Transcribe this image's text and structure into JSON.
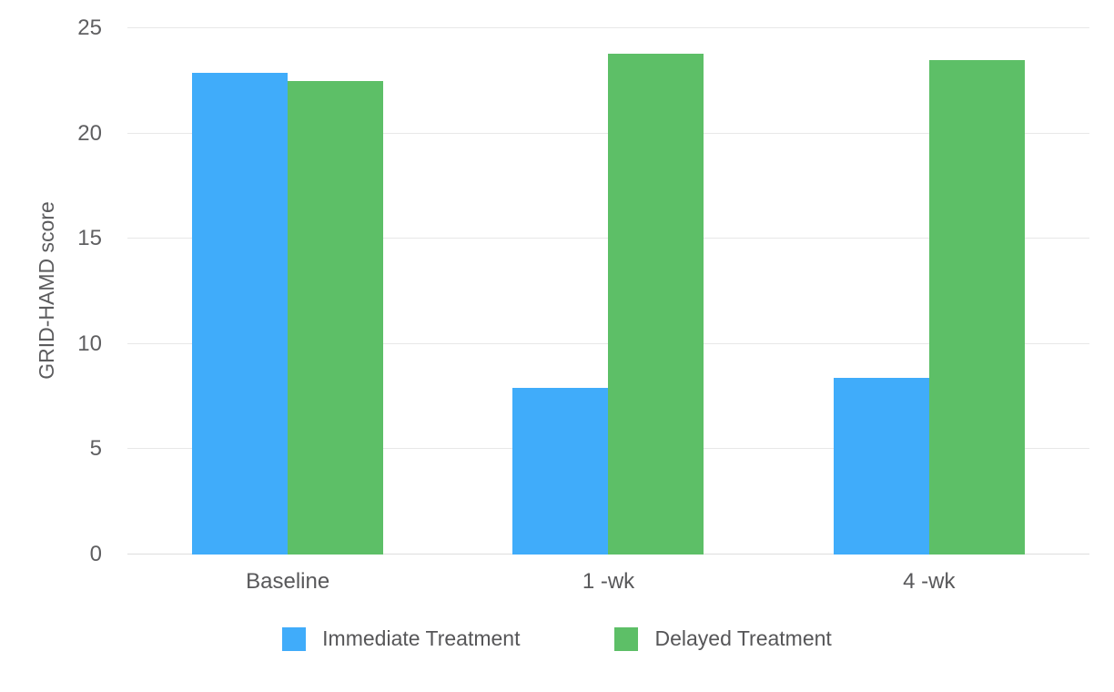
{
  "chart_data": {
    "type": "bar",
    "title": "",
    "xlabel": "",
    "ylabel": "GRID-HAMD score",
    "categories": [
      "Baseline",
      "1 -wk",
      "4 -wk"
    ],
    "series": [
      {
        "name": "Immediate Treatment",
        "color": "#40ACFA",
        "values": [
          22.9,
          7.9,
          8.4
        ]
      },
      {
        "name": "Delayed Treatment",
        "color": "#5DBF67",
        "values": [
          22.5,
          23.8,
          23.5
        ]
      }
    ],
    "ylim": [
      0,
      25
    ],
    "yticks": [
      0,
      5,
      10,
      15,
      20,
      25
    ],
    "grid": true,
    "legend_position": "bottom",
    "colors": {
      "grid_line": "#e8e8e8",
      "axis_baseline": "#dedede",
      "tick_text": "#5f5f61",
      "category_text": "#58585a",
      "legend_text": "#565658",
      "background": "#ffffff"
    }
  }
}
